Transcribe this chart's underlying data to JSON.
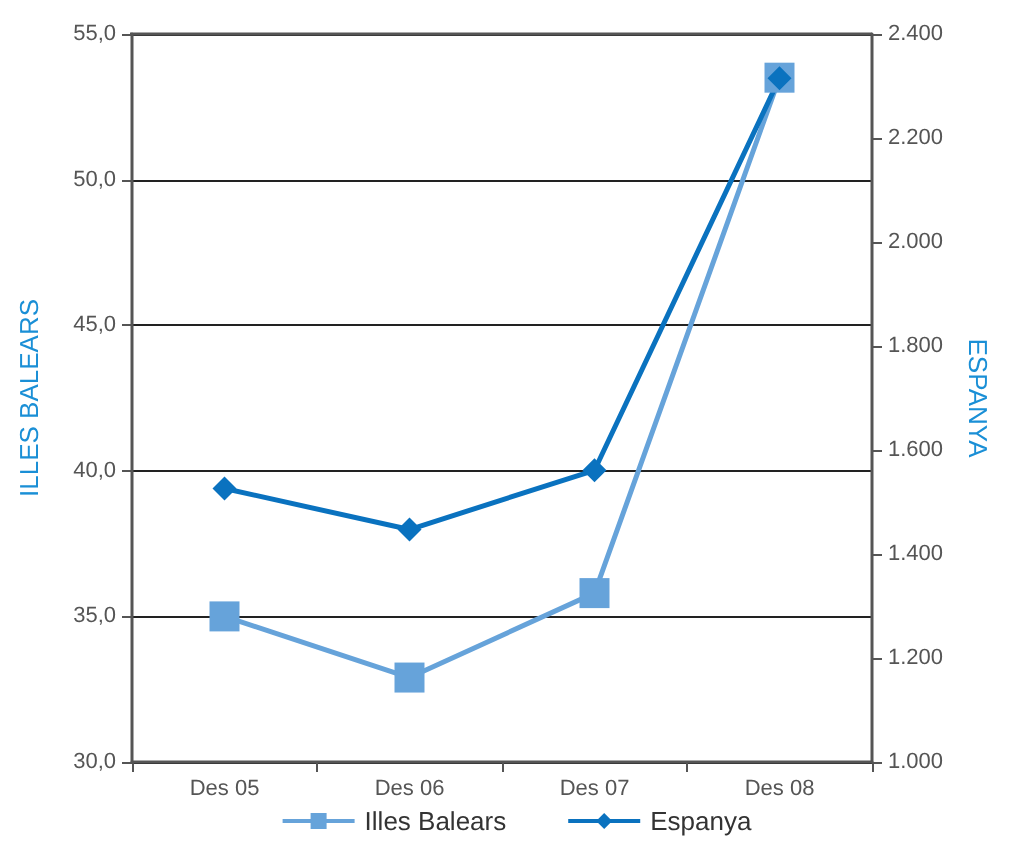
{
  "chart_data": {
    "type": "line",
    "ylabel": "ILLES BALEARS",
    "y2label": "ESPANYA",
    "categories": [
      "Des 05",
      "Des 06",
      "Des 07",
      "Des 08"
    ],
    "series": [
      {
        "name": "Illes Balears",
        "color": "#66a3da",
        "marker": "square",
        "values": [
          35.0,
          32.9,
          35.8,
          53.5
        ]
      },
      {
        "name": "Espanya",
        "color": "#0a72bf",
        "marker": "diamond",
        "axis": "y2",
        "values": [
          1526,
          1447,
          1561,
          2315
        ]
      }
    ],
    "ylim": [
      30,
      55
    ],
    "yticks": [
      {
        "value": 30,
        "label": "30,0"
      },
      {
        "value": 35,
        "label": "35,0"
      },
      {
        "value": 40,
        "label": "40,0"
      },
      {
        "value": 45,
        "label": "45,0"
      },
      {
        "value": 50,
        "label": "50,0"
      },
      {
        "value": 55,
        "label": "55,0"
      }
    ],
    "y2lim": [
      1000,
      2400
    ],
    "y2ticks": [
      {
        "value": 1000,
        "label": "1.000"
      },
      {
        "value": 1200,
        "label": "1.200"
      },
      {
        "value": 1400,
        "label": "1.400"
      },
      {
        "value": 1600,
        "label": "1.600"
      },
      {
        "value": 1800,
        "label": "1.800"
      },
      {
        "value": 2000,
        "label": "2.000"
      },
      {
        "value": 2200,
        "label": "2.200"
      },
      {
        "value": 2400,
        "label": "2.400"
      }
    ],
    "grid": "y",
    "legend": "bottom",
    "line_style": "solid"
  }
}
